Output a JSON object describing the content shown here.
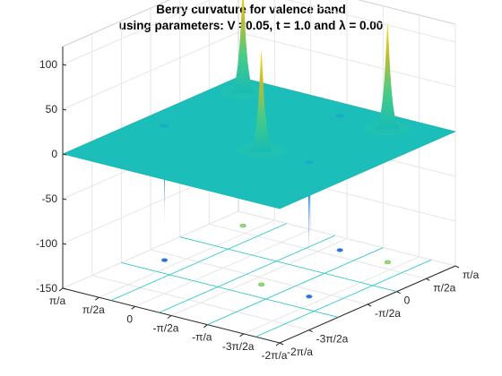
{
  "chart_data": {
    "type": "surface",
    "title": "Berry curvature for valence band",
    "subtitle": "using parameters: V =0.05, t = 1.0 and λ = 0.00",
    "xlabel": "",
    "ylabel": "",
    "zlabel": "",
    "zlim": [
      -150,
      120
    ],
    "z_ticks": [
      "100",
      "50",
      "0",
      "-50",
      "-100",
      "-150"
    ],
    "z_tick_values": [
      100,
      50,
      0,
      -50,
      -100,
      -150
    ],
    "x_ticks": [
      "π/a",
      "π/2a",
      "0",
      "-π/2a",
      "-π/a",
      "-3π/2a",
      "-2π/a"
    ],
    "x_tick_values": [
      1,
      0.5,
      0,
      -0.5,
      -1,
      -1.5,
      -2
    ],
    "y_ticks": [
      "-2π/a",
      "-3π/2a",
      "-π/2a",
      "0",
      "π/2a",
      "π/a"
    ],
    "y_tick_values": [
      -2,
      -1.5,
      -0.5,
      0,
      0.5,
      1
    ],
    "baseline_value": 0,
    "positive_peaks": [
      {
        "x": -1.33,
        "y": 0.67,
        "z": 118
      },
      {
        "x": -0.67,
        "y": -0.67,
        "z": 112
      },
      {
        "x": 0.67,
        "y": 0.67,
        "z": 118
      }
    ],
    "negative_peaks": [
      {
        "x": 0.67,
        "y": -0.67,
        "z": -112
      },
      {
        "x": -0.67,
        "y": 0.67,
        "z": -55
      },
      {
        "x": -1.33,
        "y": -0.67,
        "z": -112
      }
    ],
    "floor_contours": true,
    "grid": true,
    "colormap": "parula"
  }
}
